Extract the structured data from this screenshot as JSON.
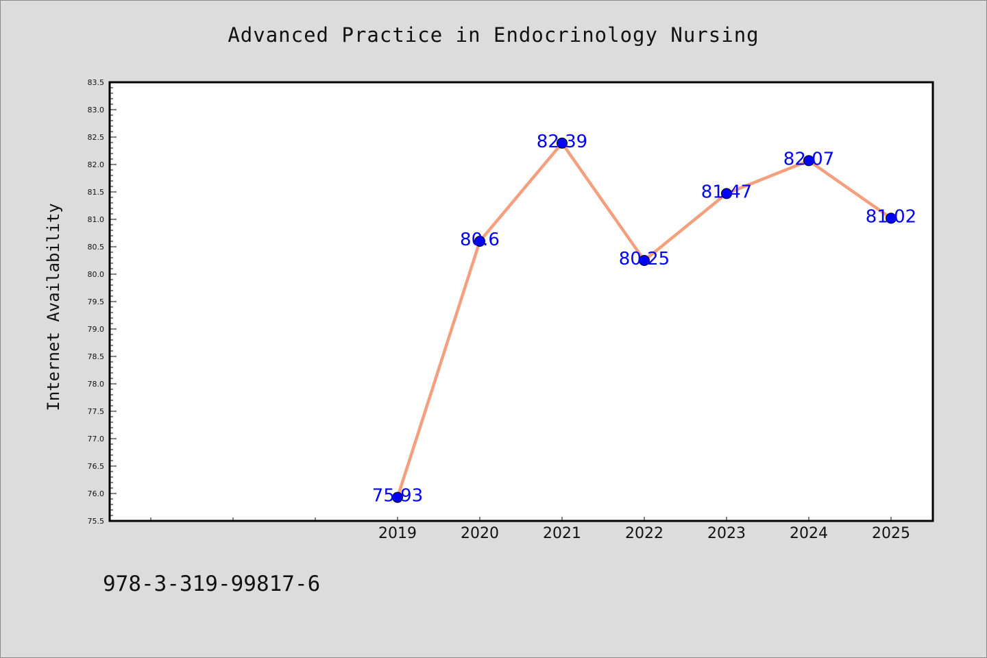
{
  "chart_data": {
    "type": "line",
    "title": "Advanced Practice in Endocrinology Nursing",
    "xlabel": "",
    "ylabel": "Internet Availability",
    "categories": [
      "2019",
      "2020",
      "2021",
      "2022",
      "2023",
      "2024",
      "2025"
    ],
    "series": [
      {
        "values": [
          75.93,
          80.6,
          82.39,
          80.25,
          81.47,
          82.07,
          81.02
        ],
        "data_labels": [
          "75.93",
          "80.6",
          "82.39",
          "80.25",
          "81.47",
          "82.07",
          "81.02"
        ]
      }
    ],
    "ylim": [
      75.5,
      83.5
    ],
    "yticks": [
      "75.5",
      "76.0",
      "76.5",
      "77.0",
      "77.5",
      "78.0",
      "78.5",
      "79.0",
      "79.5",
      "80.0",
      "80.5",
      "81.0",
      "81.5",
      "82.0",
      "82.5",
      "83.0",
      "83.5"
    ],
    "grid": false,
    "legend": "none",
    "colors": {
      "line": "#f4a07e",
      "marker": "#0000ff",
      "data_label": "#0000ff",
      "plot_background": "#ffffff",
      "page_background": "#dcdcdc"
    }
  },
  "footer": {
    "code": "978-3-319-99817-6"
  }
}
